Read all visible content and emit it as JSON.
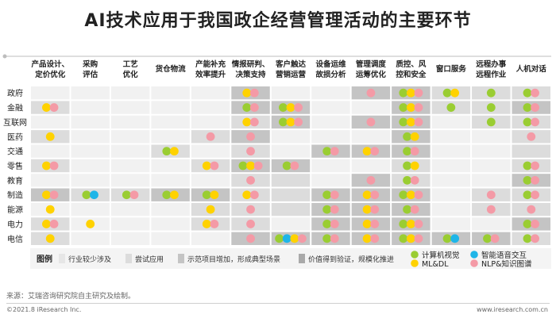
{
  "title": "AI技术应用于我国政企经营管理活动的主要环节",
  "source": "来源：艾瑞咨询研究院自主研究及绘制。",
  "copyright": "©2021.8 iResearch Inc.",
  "website": "www.iresearch.com.cn",
  "legend": {
    "label": "图例",
    "levels": [
      {
        "label": "行业较少涉及",
        "color": "#f1f1f1"
      },
      {
        "label": "尝试应用",
        "color": "#dcdcdc"
      },
      {
        "label": "示范项目增加，形成典型场景",
        "color": "#c4c4c4"
      },
      {
        "label": "价值得到验证，规模化推进",
        "color": "#a9a9a9"
      }
    ],
    "tech": [
      {
        "key": "g",
        "label": "计算机视觉",
        "color": "#9acd32"
      },
      {
        "key": "b",
        "label": "智能语音交互",
        "color": "#1fb5e8"
      },
      {
        "key": "y",
        "label": "ML&DL",
        "color": "#ffd200"
      },
      {
        "key": "p",
        "label": "NLP&知识图谱",
        "color": "#f49aa6"
      }
    ]
  },
  "chart_data": {
    "type": "heatmap",
    "title": "AI技术应用于我国政企经营管理活动的主要环节",
    "columns": [
      "产品设计、\n定价优化",
      "采购\n评估",
      "工艺\n优化",
      "货仓物流",
      "产能补充\n效率提升",
      "情报研判、\n决策支持",
      "客户触达\n营销运营",
      "设备运维\n故损分析",
      "管理调度\n运筹优化",
      "质控、风\n控和安全",
      "窗口服务",
      "远程办事\n远程作业",
      "人机对话"
    ],
    "rows": [
      "政府",
      "金融",
      "互联网",
      "医药",
      "交通",
      "零售",
      "教育",
      "制造",
      "能源",
      "电力",
      "电信"
    ],
    "levels": [
      [
        1,
        1,
        1,
        1,
        1,
        3,
        1,
        1,
        3,
        3,
        2,
        2,
        2
      ],
      [
        2,
        1,
        1,
        1,
        1,
        3,
        3,
        1,
        1,
        3,
        2,
        2,
        3
      ],
      [
        1,
        1,
        1,
        1,
        1,
        2,
        3,
        1,
        3,
        3,
        1,
        2,
        2
      ],
      [
        2,
        1,
        1,
        1,
        2,
        3,
        1,
        1,
        1,
        3,
        1,
        1,
        2
      ],
      [
        1,
        1,
        1,
        2,
        1,
        2,
        1,
        3,
        3,
        3,
        1,
        1,
        2
      ],
      [
        2,
        1,
        1,
        1,
        2,
        3,
        3,
        1,
        1,
        2,
        1,
        1,
        2
      ],
      [
        1,
        1,
        1,
        1,
        1,
        2,
        2,
        1,
        3,
        2,
        1,
        1,
        3
      ],
      [
        3,
        2,
        2,
        3,
        3,
        2,
        2,
        3,
        3,
        3,
        1,
        2,
        2
      ],
      [
        1,
        1,
        1,
        1,
        2,
        2,
        2,
        3,
        3,
        3,
        1,
        2,
        2
      ],
      [
        2,
        1,
        1,
        1,
        2,
        2,
        1,
        3,
        3,
        3,
        1,
        1,
        3
      ],
      [
        2,
        1,
        1,
        1,
        1,
        3,
        3,
        3,
        3,
        3,
        3,
        3,
        2
      ]
    ],
    "dots": [
      [
        "",
        "",
        "",
        "",
        "",
        "yp",
        "",
        "",
        "p",
        "gyp",
        "gy",
        "g",
        "gp"
      ],
      [
        "yp",
        "",
        "",
        "",
        "",
        "gp",
        "gyp",
        "",
        "",
        "gyp",
        "g",
        "g",
        "gp"
      ],
      [
        "",
        "",
        "",
        "",
        "",
        "yp",
        "gyp",
        "",
        "p",
        "gyp",
        "",
        "g",
        "gp"
      ],
      [
        "y",
        "",
        "",
        "",
        "p",
        "p",
        "",
        "",
        "",
        "gy",
        "",
        "",
        "p"
      ],
      [
        "",
        "",
        "",
        "gy",
        "",
        "p",
        "",
        "gp",
        "yp",
        "gp",
        "",
        "",
        ""
      ],
      [
        "yp",
        "",
        "",
        "",
        "yp",
        "gyp",
        "gp",
        "",
        "",
        "gy",
        "",
        "",
        "gp"
      ],
      [
        "",
        "",
        "",
        "",
        "",
        "p",
        "",
        "",
        "p",
        "gp",
        "",
        "",
        "gp"
      ],
      [
        "yp",
        "gb",
        "gp",
        "gy",
        "gy",
        "yp",
        "",
        "gp",
        "yp",
        "gyp",
        "",
        "p",
        "gp"
      ],
      [
        "y",
        "",
        "",
        "",
        "y",
        "p",
        "",
        "gp",
        "yp",
        "gp",
        "",
        "p",
        "p"
      ],
      [
        "yp",
        "y",
        "",
        "",
        "yp",
        "p",
        "",
        "gp",
        "yp",
        "gyp",
        "",
        "",
        "gp"
      ],
      [
        "y",
        "",
        "",
        "",
        "",
        "p",
        "gbyp",
        "gp",
        "yp",
        "gyp",
        "gb",
        "gp",
        "gp"
      ]
    ]
  }
}
